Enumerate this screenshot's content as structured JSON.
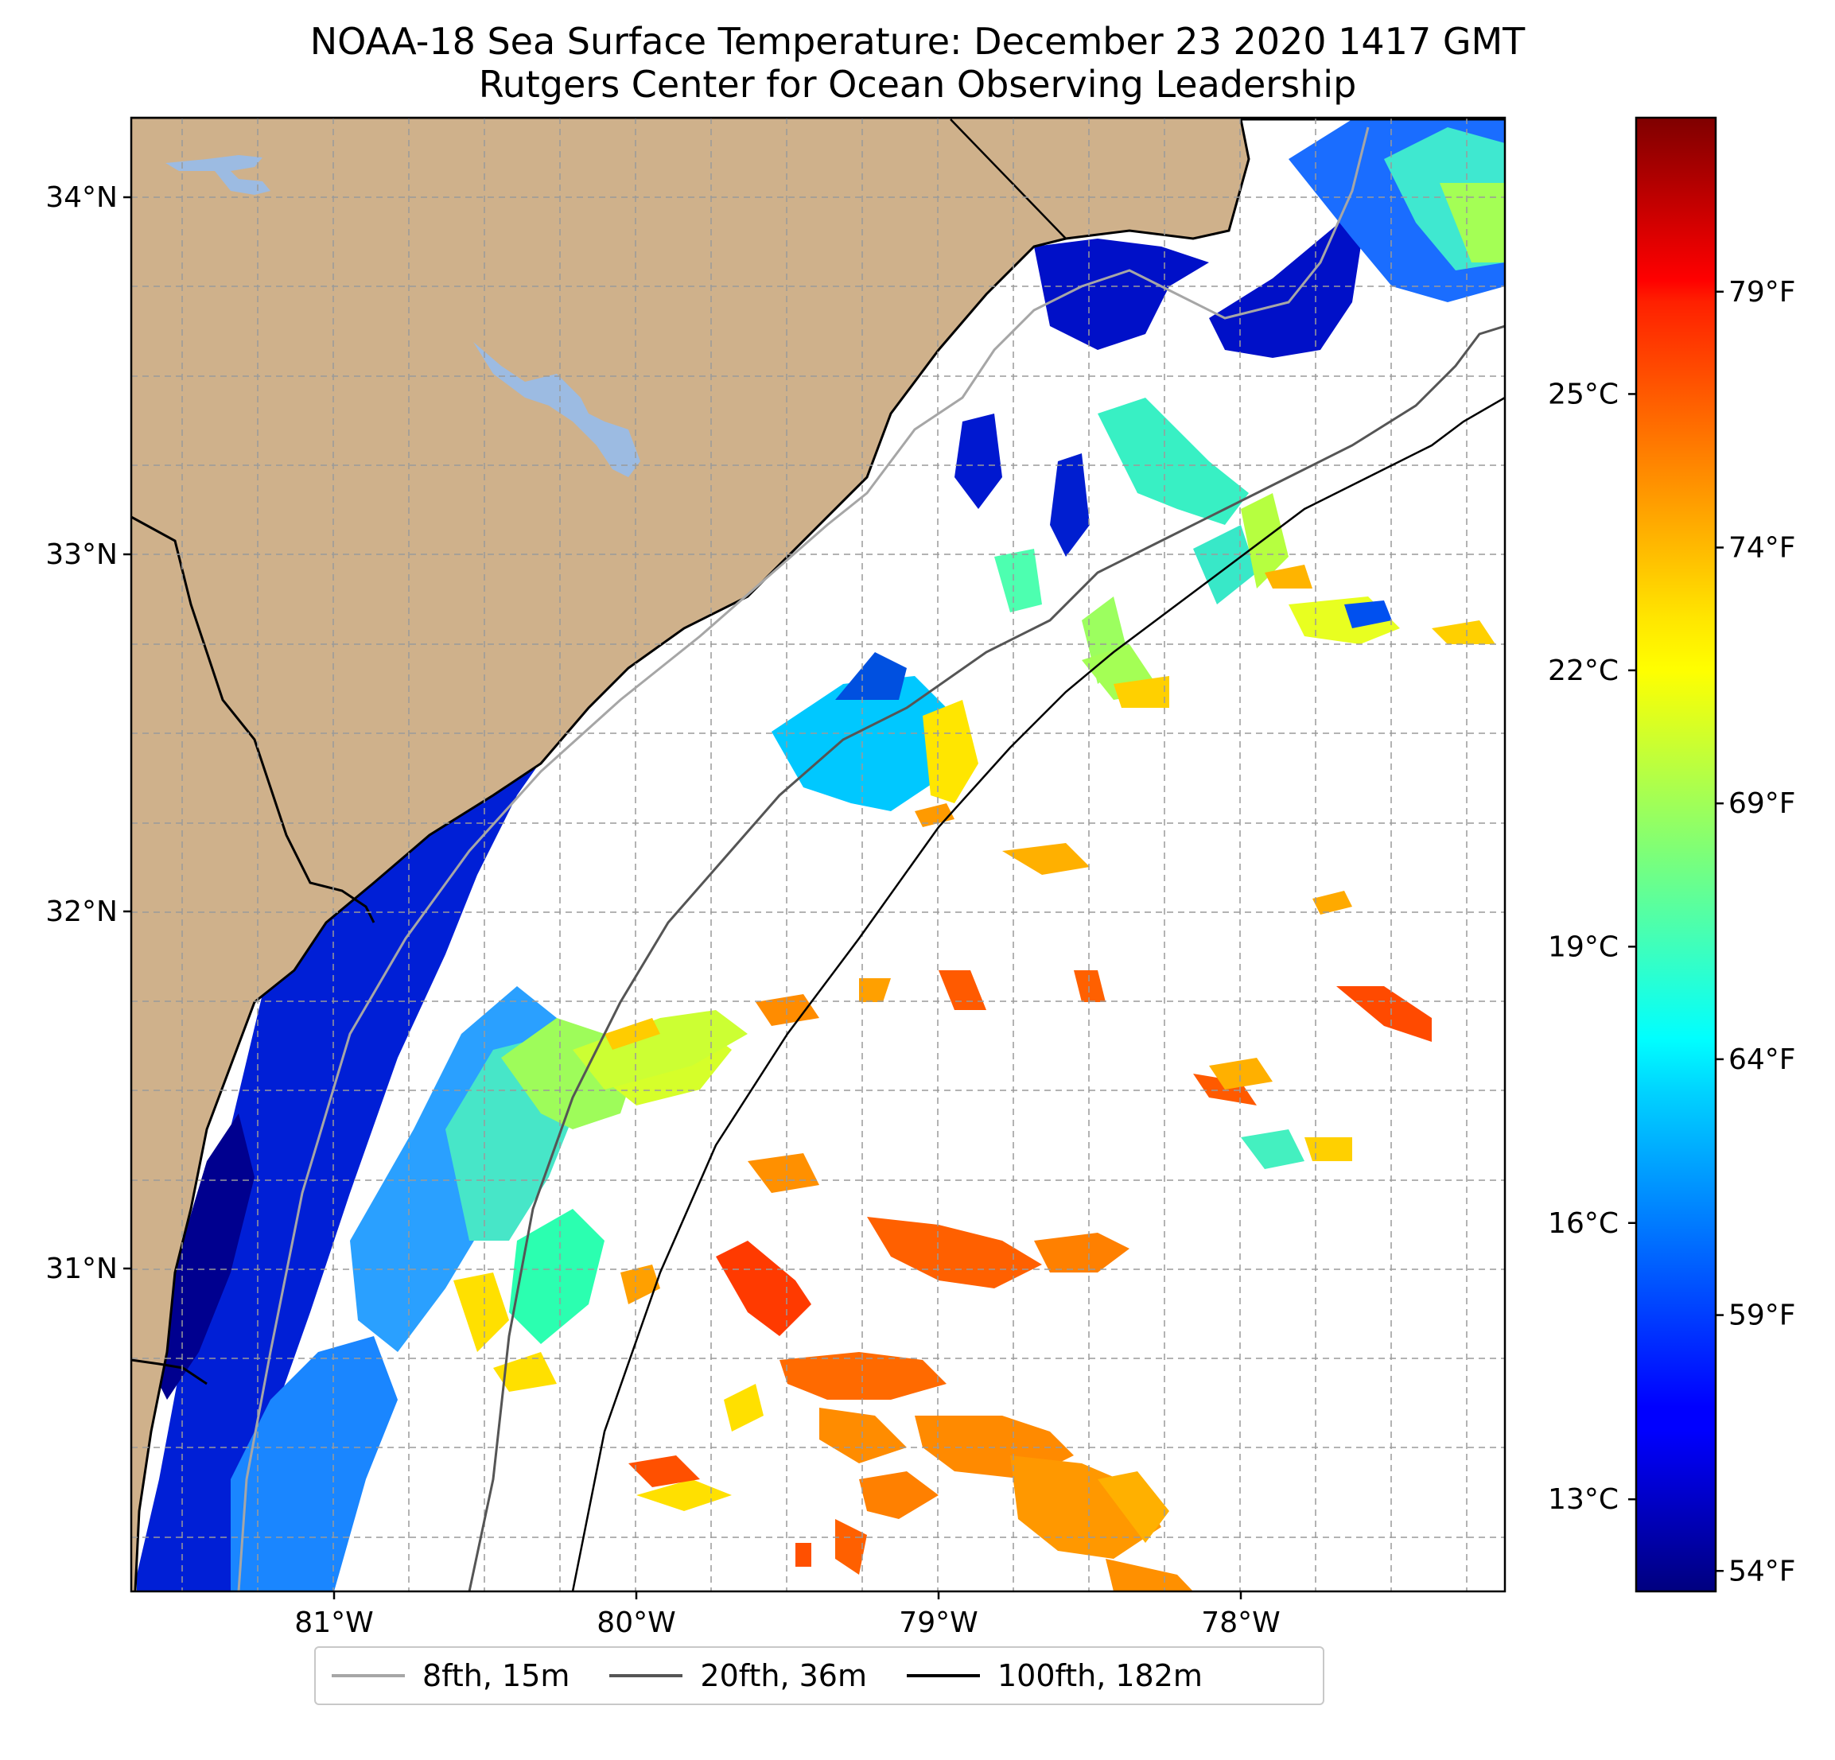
{
  "title": "NOAA-18 Sea Surface Temperature: December 23 2020 1417 GMT",
  "subtitle": "Rutgers Center for Ocean Observing Leadership",
  "map": {
    "lat_labels": [
      "34°N",
      "33°N",
      "32°N",
      "31°N"
    ],
    "lon_labels": [
      "81°W",
      "80°W",
      "79°W",
      "78°W"
    ],
    "lat_values": [
      34,
      33,
      32,
      31
    ],
    "lon_values": [
      -81,
      -80,
      -79,
      -78
    ],
    "gridlines": true,
    "land_color": "#cfb18b",
    "lake_color": "#9cbbe2",
    "ocean_nodata_color": "#ffffff"
  },
  "colorbar": {
    "colormap": "jet",
    "celsius_labels": [
      "25°C",
      "22°C",
      "19°C",
      "16°C",
      "13°C"
    ],
    "fahrenheit_labels": [
      "79°F",
      "74°F",
      "69°F",
      "64°F",
      "59°F",
      "54°F"
    ]
  },
  "legend": {
    "items": [
      {
        "label": "8fth, 15m",
        "color": "#a6a6a6"
      },
      {
        "label": "20fth, 36m",
        "color": "#555555"
      },
      {
        "label": "100fth, 182m",
        "color": "#000000"
      }
    ]
  }
}
